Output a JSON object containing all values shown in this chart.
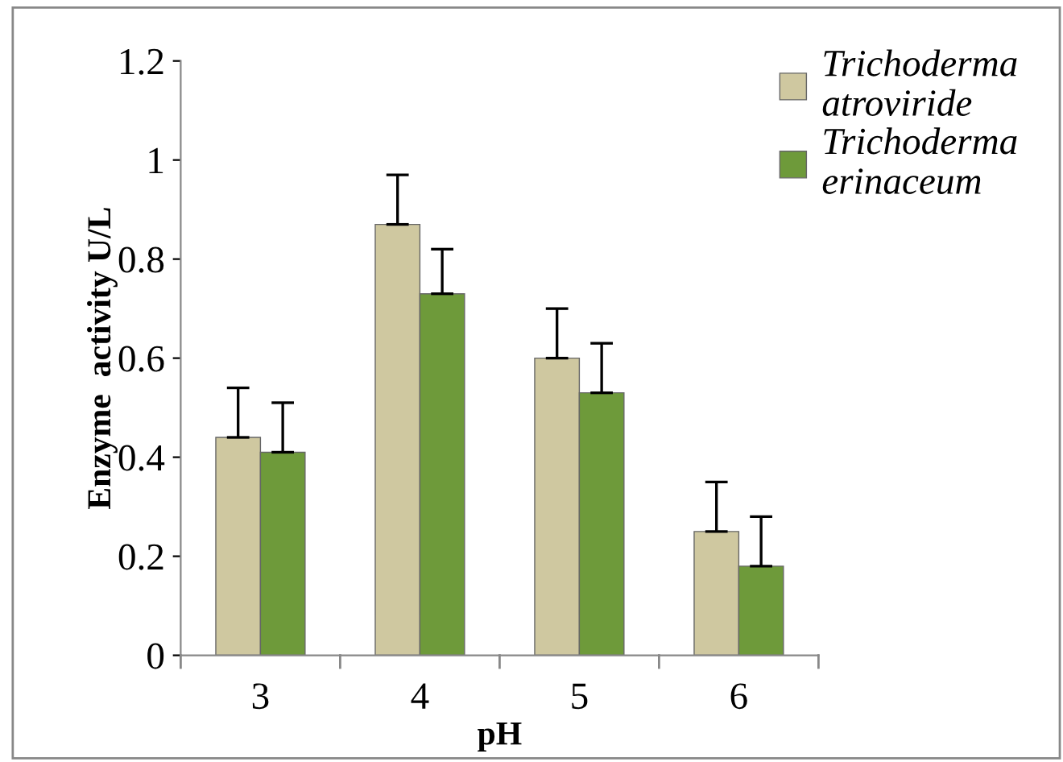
{
  "chart_data": {
    "type": "bar",
    "xlabel": "pH",
    "ylabel": "Enzyme  activity U/L",
    "categories": [
      "3",
      "4",
      "5",
      "6"
    ],
    "series": [
      {
        "name": "Trichoderma\natroviride",
        "color": "#cfc8a0",
        "values": [
          0.44,
          0.87,
          0.6,
          0.25
        ],
        "errors": [
          [
            0.44,
            0.54
          ],
          [
            0.87,
            0.97
          ],
          [
            0.6,
            0.7
          ],
          [
            0.25,
            0.35
          ]
        ]
      },
      {
        "name": "Trichoderma\nerinaceum",
        "color": "#6e9a3a",
        "values": [
          0.41,
          0.73,
          0.53,
          0.18
        ],
        "errors": [
          [
            0.41,
            0.51
          ],
          [
            0.73,
            0.82
          ],
          [
            0.53,
            0.63
          ],
          [
            0.18,
            0.28
          ]
        ]
      }
    ],
    "ylim": [
      0,
      1.2
    ],
    "yticks": [
      0,
      0.2,
      0.4,
      0.6,
      0.8,
      1,
      1.2
    ],
    "grid": false,
    "legend": "top right"
  }
}
